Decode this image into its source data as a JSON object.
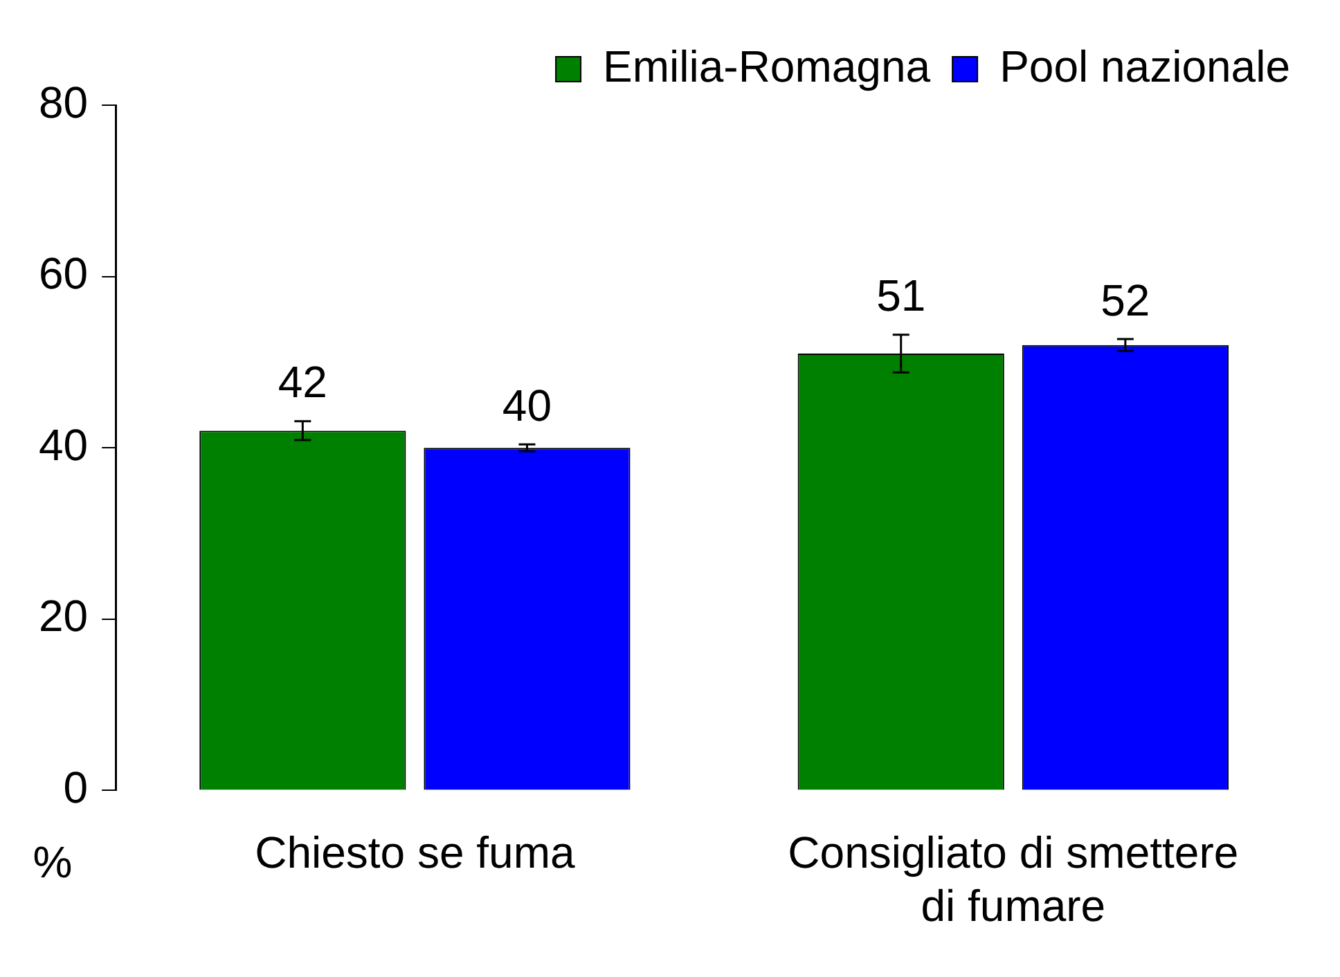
{
  "chart_data": {
    "type": "bar",
    "ylabel": "%",
    "categories": [
      "Chiesto se fuma",
      "Consigliato di smettere di fumare"
    ],
    "series": [
      {
        "name": "Emilia-Romagna",
        "color": "#008000",
        "values": [
          42,
          51
        ],
        "errors": [
          1.1,
          2.2
        ]
      },
      {
        "name": "Pool nazionale",
        "color": "#0000ff",
        "values": [
          40,
          52
        ],
        "errors": [
          0.4,
          0.7
        ]
      }
    ],
    "ylim": [
      0,
      80
    ],
    "yticks": [
      0,
      20,
      40,
      60,
      80
    ],
    "grid": false,
    "legend": "top",
    "data_labels": true
  }
}
